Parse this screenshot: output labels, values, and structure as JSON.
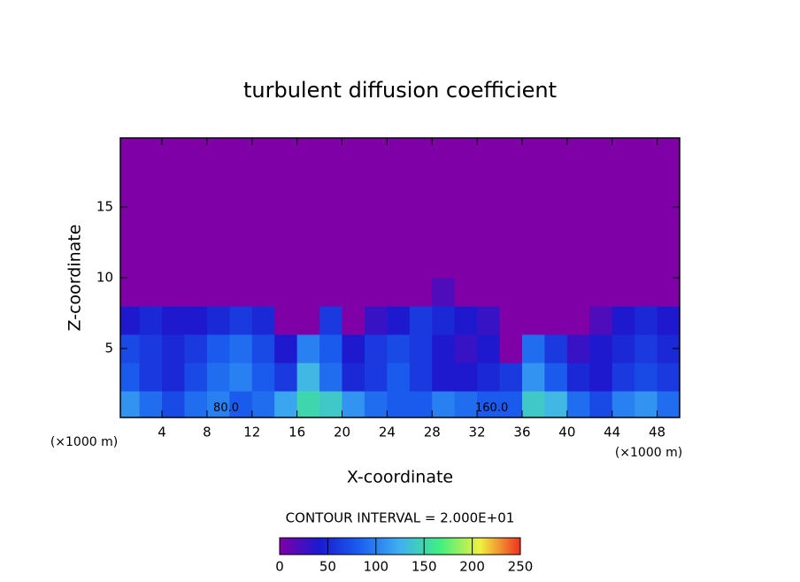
{
  "chart_data": {
    "type": "heatmap",
    "title": "turbulent diffusion coefficient",
    "x_label": "X-coordinate",
    "y_label": "Z-coordinate",
    "x_unit": "(×1000 m)",
    "y_unit": "(×1000 m)",
    "xlim": [
      0.3,
      50
    ],
    "ylim": [
      0.125,
      19.875
    ],
    "xticks": [
      4,
      8,
      12,
      16,
      20,
      24,
      28,
      32,
      36,
      40,
      44,
      48
    ],
    "yticks": [
      5,
      10,
      15
    ],
    "x": [
      1,
      3,
      5,
      7,
      9,
      11,
      13,
      15,
      17,
      19,
      21,
      23,
      25,
      27,
      29,
      31,
      33,
      35,
      37,
      39,
      41,
      43,
      45,
      47,
      49
    ],
    "y": [
      1,
      3,
      5,
      7,
      9,
      11,
      13,
      15,
      17,
      19
    ],
    "z": [
      [
        110,
        90,
        70,
        90,
        100,
        80,
        90,
        120,
        150,
        140,
        110,
        90,
        80,
        80,
        100,
        90,
        80,
        80,
        140,
        130,
        90,
        70,
        100,
        110,
        90
      ],
      [
        80,
        60,
        50,
        70,
        90,
        100,
        80,
        60,
        130,
        90,
        50,
        60,
        80,
        60,
        40,
        40,
        50,
        60,
        110,
        80,
        50,
        40,
        60,
        70,
        60
      ],
      [
        70,
        60,
        50,
        60,
        80,
        90,
        70,
        40,
        100,
        80,
        40,
        60,
        70,
        60,
        40,
        30,
        40,
        0,
        90,
        60,
        30,
        40,
        50,
        60,
        50
      ],
      [
        40,
        50,
        40,
        40,
        50,
        60,
        50,
        0,
        0,
        60,
        0,
        30,
        40,
        60,
        50,
        40,
        30,
        0,
        0,
        0,
        0,
        20,
        40,
        50,
        40
      ],
      [
        0,
        0,
        0,
        0,
        0,
        0,
        0,
        0,
        0,
        0,
        0,
        0,
        0,
        0,
        20,
        0,
        0,
        0,
        0,
        0,
        0,
        0,
        0,
        0,
        0
      ],
      [
        0,
        0,
        0,
        0,
        0,
        0,
        0,
        0,
        0,
        0,
        0,
        0,
        0,
        0,
        0,
        0,
        0,
        0,
        0,
        0,
        0,
        0,
        0,
        0,
        0
      ],
      [
        0,
        0,
        0,
        0,
        0,
        0,
        0,
        0,
        0,
        0,
        0,
        0,
        0,
        0,
        0,
        0,
        0,
        0,
        0,
        0,
        0,
        0,
        0,
        0,
        0
      ],
      [
        0,
        0,
        0,
        0,
        0,
        0,
        0,
        0,
        0,
        0,
        0,
        0,
        0,
        0,
        0,
        0,
        0,
        0,
        0,
        0,
        0,
        0,
        0,
        0,
        0
      ],
      [
        0,
        0,
        0,
        0,
        0,
        0,
        0,
        0,
        0,
        0,
        0,
        0,
        0,
        0,
        0,
        0,
        0,
        0,
        0,
        0,
        0,
        0,
        0,
        0,
        0
      ],
      [
        0,
        0,
        0,
        0,
        0,
        0,
        0,
        0,
        0,
        0,
        0,
        0,
        0,
        0,
        0,
        0,
        0,
        0,
        0,
        0,
        0,
        0,
        0,
        0,
        0
      ]
    ],
    "zlim": [
      0,
      250
    ],
    "colormap": [
      "#8000a8",
      "#1a1ad0",
      "#1a60f0",
      "#40b0f0",
      "#40f080",
      "#f0f040",
      "#f03020"
    ],
    "colorbar_title": "CONTOUR INTERVAL = 2.000E+01",
    "colorbar_ticks": [
      0,
      50,
      100,
      150,
      200,
      250
    ],
    "annotations": [
      {
        "text": "80.0",
        "x": 9.7,
        "y": 0.4
      },
      {
        "text": "160.0",
        "x": 33.3,
        "y": 0.4
      }
    ]
  }
}
